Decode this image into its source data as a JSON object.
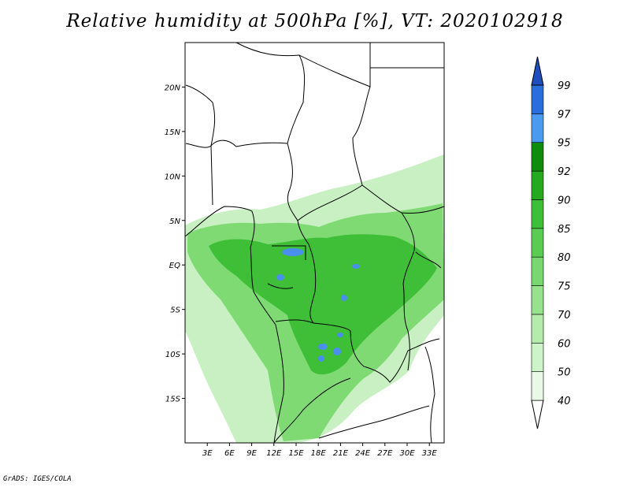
{
  "title": "Relative humidity at 500hPa [%], VT: 2020102918",
  "credit": "GrADS: IGES/COLA",
  "map": {
    "lon_range": [
      0,
      35
    ],
    "lat_range": [
      -20,
      25
    ],
    "lat_ticks": [
      {
        "value": 20,
        "label": "20N"
      },
      {
        "value": 15,
        "label": "15N"
      },
      {
        "value": 10,
        "label": "10N"
      },
      {
        "value": 5,
        "label": "5N"
      },
      {
        "value": 0,
        "label": "EQ"
      },
      {
        "value": -5,
        "label": "5S"
      },
      {
        "value": -10,
        "label": "10S"
      },
      {
        "value": -15,
        "label": "15S"
      }
    ],
    "lon_ticks": [
      {
        "value": 3,
        "label": "3E"
      },
      {
        "value": 6,
        "label": "6E"
      },
      {
        "value": 9,
        "label": "9E"
      },
      {
        "value": 12,
        "label": "12E"
      },
      {
        "value": 15,
        "label": "15E"
      },
      {
        "value": 18,
        "label": "18E"
      },
      {
        "value": 21,
        "label": "21E"
      },
      {
        "value": 24,
        "label": "24E"
      },
      {
        "value": 27,
        "label": "27E"
      },
      {
        "value": 30,
        "label": "30E"
      },
      {
        "value": 33,
        "label": "33E"
      }
    ]
  },
  "colorbar": {
    "levels": [
      "40",
      "50",
      "60",
      "70",
      "75",
      "80",
      "85",
      "90",
      "92",
      "95",
      "97",
      "99"
    ],
    "colors": [
      "#ffffff",
      "#e8fae6",
      "#cdf3c8",
      "#b3ecab",
      "#96e28d",
      "#78d86f",
      "#5acc52",
      "#3ebf39",
      "#25a91f",
      "#0f8c0c",
      "#4a9bf0",
      "#2a6edb",
      "#1f4fbf"
    ]
  },
  "palette": {
    "light": "#c8f0c2",
    "mid": "#7fda74",
    "dark": "#3fbf38",
    "blue": "#4a8ef0",
    "border": "#000000"
  }
}
